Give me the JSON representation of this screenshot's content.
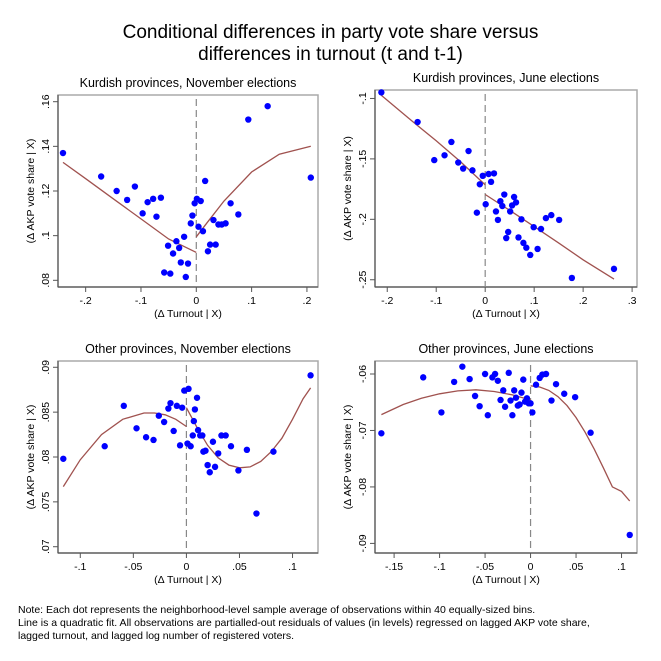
{
  "figure": {
    "title_line1": "Conditional differences in party vote share versus",
    "title_line2": "differences in turnout (t and t-1)",
    "note_lines": [
      "Note: Each dot represents the neighborhood-level sample average of observations within 40 equally-sized bins.",
      "Line is a quadratic fit. All observations are partialled-out residuals of values (in levels) regressed on lagged AKP vote share,",
      "lagged turnout, and lagged log number of registered voters."
    ],
    "colors": {
      "points": "#0000ff",
      "fit": "#a0524f",
      "frame": "#555555",
      "cutoff": "#888888"
    }
  },
  "chart_data": [
    {
      "type": "scatter",
      "title": "Kurdish provinces, November elections",
      "xlabel": "(Δ Turnout | X)",
      "ylabel": "(Δ AKP vote share | X)",
      "xlim": [
        -0.25,
        0.22
      ],
      "ylim": [
        0.077,
        0.163
      ],
      "xticks": [
        -0.2,
        -0.1,
        0,
        0.1,
        0.2
      ],
      "xtick_labels": [
        "-.2",
        "-.1",
        "0",
        ".1",
        ".2"
      ],
      "yticks": [
        0.08,
        0.1,
        0.12,
        0.14,
        0.16
      ],
      "ytick_labels": [
        ".08",
        ".1",
        ".12",
        ".14",
        ".16"
      ],
      "cutoff_x": 0,
      "points": [
        [
          -0.241,
          0.137
        ],
        [
          -0.172,
          0.1265
        ],
        [
          -0.144,
          0.12
        ],
        [
          -0.125,
          0.116
        ],
        [
          -0.111,
          0.122
        ],
        [
          -0.097,
          0.11
        ],
        [
          -0.088,
          0.115
        ],
        [
          -0.078,
          0.1165
        ],
        [
          -0.072,
          0.1085
        ],
        [
          -0.064,
          0.117
        ],
        [
          -0.058,
          0.0835
        ],
        [
          -0.051,
          0.0955
        ],
        [
          -0.047,
          0.083
        ],
        [
          -0.042,
          0.092
        ],
        [
          -0.036,
          0.0975
        ],
        [
          -0.031,
          0.0945
        ],
        [
          -0.028,
          0.088
        ],
        [
          -0.022,
          0.0995
        ],
        [
          -0.019,
          0.0815
        ],
        [
          -0.015,
          0.0875
        ],
        [
          -0.01,
          0.1055
        ],
        [
          -0.007,
          0.109
        ],
        [
          -0.003,
          0.1145
        ],
        [
          0.001,
          0.1165
        ],
        [
          0.004,
          0.104
        ],
        [
          0.008,
          0.1155
        ],
        [
          0.012,
          0.102
        ],
        [
          0.016,
          0.1245
        ],
        [
          0.021,
          0.093
        ],
        [
          0.025,
          0.096
        ],
        [
          0.031,
          0.107
        ],
        [
          0.035,
          0.096
        ],
        [
          0.04,
          0.105
        ],
        [
          0.046,
          0.105
        ],
        [
          0.053,
          0.1055
        ],
        [
          0.062,
          0.1145
        ],
        [
          0.076,
          0.1095
        ],
        [
          0.094,
          0.152
        ],
        [
          0.129,
          0.158
        ],
        [
          0.207,
          0.126
        ]
      ],
      "fit_left": [
        [
          -0.241,
          0.1328
        ],
        [
          -0.2,
          0.1255
        ],
        [
          -0.15,
          0.1165
        ],
        [
          -0.1,
          0.1075
        ],
        [
          -0.05,
          0.0985
        ],
        [
          0,
          0.0925
        ]
      ],
      "fit_right": [
        [
          0,
          0.0995
        ],
        [
          0.02,
          0.106
        ],
        [
          0.05,
          0.1155
        ],
        [
          0.1,
          0.1285
        ],
        [
          0.15,
          0.1365
        ],
        [
          0.207,
          0.14
        ]
      ]
    },
    {
      "type": "scatter",
      "title": "Kurdish provinces, June elections",
      "xlabel": "(Δ Turnout | X)",
      "ylabel": "(Δ AKP vote share | X)",
      "xlim": [
        -0.225,
        0.31
      ],
      "ylim": [
        -0.256,
        -0.093
      ],
      "xticks": [
        -0.2,
        -0.1,
        0,
        0.1,
        0.2,
        0.3
      ],
      "xtick_labels": [
        "-.2",
        "-.1",
        "0",
        ".1",
        ".2",
        ".3"
      ],
      "yticks": [
        -0.1,
        -0.15,
        -0.2,
        -0.25
      ],
      "ytick_labels": [
        "-.1",
        "-.15",
        "-.2",
        "-.25"
      ],
      "cutoff_x": 0,
      "points": [
        [
          -0.212,
          -0.095
        ],
        [
          -0.138,
          -0.1195
        ],
        [
          -0.104,
          -0.151
        ],
        [
          -0.083,
          -0.147
        ],
        [
          -0.069,
          -0.136
        ],
        [
          -0.055,
          -0.153
        ],
        [
          -0.045,
          -0.158
        ],
        [
          -0.034,
          -0.1435
        ],
        [
          -0.026,
          -0.1595
        ],
        [
          -0.017,
          -0.1945
        ],
        [
          -0.011,
          -0.171
        ],
        [
          -0.005,
          -0.164
        ],
        [
          0.001,
          -0.1875
        ],
        [
          0.007,
          -0.1625
        ],
        [
          0.012,
          -0.169
        ],
        [
          0.018,
          -0.162
        ],
        [
          0.022,
          -0.1935
        ],
        [
          0.026,
          -0.2005
        ],
        [
          0.031,
          -0.185
        ],
        [
          0.035,
          -0.189
        ],
        [
          0.039,
          -0.1795
        ],
        [
          0.043,
          -0.2155
        ],
        [
          0.047,
          -0.2105
        ],
        [
          0.051,
          -0.1935
        ],
        [
          0.055,
          -0.1885
        ],
        [
          0.059,
          -0.1815
        ],
        [
          0.063,
          -0.186
        ],
        [
          0.068,
          -0.215
        ],
        [
          0.074,
          -0.2
        ],
        [
          0.078,
          -0.2195
        ],
        [
          0.084,
          -0.2235
        ],
        [
          0.092,
          -0.2295
        ],
        [
          0.099,
          -0.2065
        ],
        [
          0.107,
          -0.2245
        ],
        [
          0.114,
          -0.208
        ],
        [
          0.124,
          -0.199
        ],
        [
          0.135,
          -0.1965
        ],
        [
          0.151,
          -0.2005
        ],
        [
          0.177,
          -0.2485
        ],
        [
          0.263,
          -0.241
        ]
      ],
      "fit_left": [
        [
          -0.212,
          -0.0975
        ],
        [
          -0.15,
          -0.1185
        ],
        [
          -0.1,
          -0.135
        ],
        [
          -0.05,
          -0.1525
        ],
        [
          0,
          -0.1715
        ]
      ],
      "fit_right": [
        [
          0,
          -0.1795
        ],
        [
          0.05,
          -0.1925
        ],
        [
          0.1,
          -0.206
        ],
        [
          0.15,
          -0.2195
        ],
        [
          0.2,
          -0.2335
        ],
        [
          0.263,
          -0.2495
        ]
      ]
    },
    {
      "type": "scatter",
      "title": "Other provinces, November elections",
      "xlabel": "(Δ Turnout | X)",
      "ylabel": "(Δ AKP vote share | X)",
      "xlim": [
        -0.121,
        0.124
      ],
      "ylim": [
        0.0693,
        0.0907
      ],
      "xticks": [
        -0.1,
        -0.05,
        0,
        0.05,
        0.1
      ],
      "xtick_labels": [
        "-.1",
        "-.05",
        "0",
        ".05",
        ".1"
      ],
      "yticks": [
        0.07,
        0.075,
        0.08,
        0.085,
        0.09
      ],
      "ytick_labels": [
        ".07",
        ".075",
        ".08",
        ".085",
        ".09"
      ],
      "cutoff_x": 0,
      "points": [
        [
          -0.116,
          0.0798
        ],
        [
          -0.077,
          0.0812
        ],
        [
          -0.059,
          0.0857
        ],
        [
          -0.047,
          0.0832
        ],
        [
          -0.038,
          0.0822
        ],
        [
          -0.031,
          0.0819
        ],
        [
          -0.026,
          0.0846
        ],
        [
          -0.021,
          0.0839
        ],
        [
          -0.017,
          0.0854
        ],
        [
          -0.015,
          0.086
        ],
        [
          -0.012,
          0.0829
        ],
        [
          -0.009,
          0.0857
        ],
        [
          -0.006,
          0.0813
        ],
        [
          -0.004,
          0.0855
        ],
        [
          -0.002,
          0.0874
        ],
        [
          0.001,
          0.0815
        ],
        [
          0.002,
          0.0876
        ],
        [
          0.004,
          0.0812
        ],
        [
          0.006,
          0.0824
        ],
        [
          0.007,
          0.084
        ],
        [
          0.008,
          0.0853
        ],
        [
          0.01,
          0.0866
        ],
        [
          0.011,
          0.083
        ],
        [
          0.013,
          0.0824
        ],
        [
          0.015,
          0.0824
        ],
        [
          0.016,
          0.0806
        ],
        [
          0.018,
          0.0807
        ],
        [
          0.02,
          0.0791
        ],
        [
          0.022,
          0.0783
        ],
        [
          0.025,
          0.0817
        ],
        [
          0.027,
          0.0789
        ],
        [
          0.03,
          0.0804
        ],
        [
          0.033,
          0.0824
        ],
        [
          0.037,
          0.0824
        ],
        [
          0.042,
          0.0812
        ],
        [
          0.049,
          0.0785
        ],
        [
          0.057,
          0.0808
        ],
        [
          0.066,
          0.0737
        ],
        [
          0.082,
          0.0806
        ],
        [
          0.117,
          0.0891
        ]
      ],
      "fit_left": [
        [
          -0.116,
          0.0767
        ],
        [
          -0.1,
          0.0797
        ],
        [
          -0.08,
          0.0825
        ],
        [
          -0.06,
          0.0842
        ],
        [
          -0.04,
          0.0849
        ],
        [
          -0.03,
          0.0849
        ],
        [
          -0.02,
          0.0847
        ],
        [
          -0.01,
          0.0842
        ],
        [
          0,
          0.0834
        ]
      ],
      "fit_right": [
        [
          0,
          0.0855
        ],
        [
          0.01,
          0.0833
        ],
        [
          0.02,
          0.0813
        ],
        [
          0.03,
          0.0799
        ],
        [
          0.04,
          0.0791
        ],
        [
          0.05,
          0.0788
        ],
        [
          0.06,
          0.0789
        ],
        [
          0.07,
          0.0795
        ],
        [
          0.08,
          0.0806
        ],
        [
          0.09,
          0.0821
        ],
        [
          0.1,
          0.0842
        ],
        [
          0.11,
          0.0865
        ],
        [
          0.117,
          0.0877
        ]
      ]
    },
    {
      "type": "scatter",
      "title": "Other provinces, June elections",
      "xlabel": "(Δ Turnout | X)",
      "ylabel": "(Δ AKP vote share | X)",
      "xlim": [
        -0.171,
        0.117
      ],
      "ylim": [
        -0.0917,
        -0.0577
      ],
      "xticks": [
        -0.15,
        -0.1,
        -0.05,
        0,
        0.05,
        0.1
      ],
      "xtick_labels": [
        "-.15",
        "-.1",
        "-.05",
        "0",
        ".05",
        ".1"
      ],
      "yticks": [
        -0.06,
        -0.07,
        -0.08,
        -0.09
      ],
      "ytick_labels": [
        "-.06",
        "-.07",
        "-.08",
        "-.09"
      ],
      "cutoff_x": 0,
      "points": [
        [
          -0.164,
          -0.0705
        ],
        [
          -0.118,
          -0.0606
        ],
        [
          -0.098,
          -0.0668
        ],
        [
          -0.084,
          -0.0614
        ],
        [
          -0.075,
          -0.0587
        ],
        [
          -0.067,
          -0.0609
        ],
        [
          -0.061,
          -0.0639
        ],
        [
          -0.056,
          -0.0657
        ],
        [
          -0.05,
          -0.06
        ],
        [
          -0.047,
          -0.0673
        ],
        [
          -0.042,
          -0.0606
        ],
        [
          -0.039,
          -0.06
        ],
        [
          -0.036,
          -0.0612
        ],
        [
          -0.033,
          -0.0646
        ],
        [
          -0.03,
          -0.0629
        ],
        [
          -0.028,
          -0.0658
        ],
        [
          -0.024,
          -0.0598
        ],
        [
          -0.022,
          -0.0647
        ],
        [
          -0.02,
          -0.0673
        ],
        [
          -0.018,
          -0.0629
        ],
        [
          -0.016,
          -0.0642
        ],
        [
          -0.014,
          -0.0656
        ],
        [
          -0.012,
          -0.0654
        ],
        [
          -0.01,
          -0.0633
        ],
        [
          -0.008,
          -0.061
        ],
        [
          -0.006,
          -0.0649
        ],
        [
          -0.004,
          -0.0643
        ],
        [
          -0.002,
          -0.0652
        ],
        [
          0.0,
          -0.0652
        ],
        [
          0.002,
          -0.0668
        ],
        [
          0.006,
          -0.0619
        ],
        [
          0.01,
          -0.0607
        ],
        [
          0.013,
          -0.0601
        ],
        [
          0.017,
          -0.06
        ],
        [
          0.023,
          -0.0647
        ],
        [
          0.028,
          -0.0618
        ],
        [
          0.037,
          -0.0635
        ],
        [
          0.049,
          -0.0641
        ],
        [
          0.066,
          -0.0704
        ],
        [
          0.109,
          -0.0885
        ]
      ],
      "fit_left": [
        [
          -0.164,
          -0.0672
        ],
        [
          -0.14,
          -0.0654
        ],
        [
          -0.12,
          -0.0643
        ],
        [
          -0.1,
          -0.0635
        ],
        [
          -0.08,
          -0.063
        ],
        [
          -0.06,
          -0.0628
        ],
        [
          -0.04,
          -0.0631
        ],
        [
          -0.02,
          -0.0637
        ],
        [
          0,
          -0.0646
        ]
      ],
      "fit_right": [
        [
          0,
          -0.0621
        ],
        [
          0.01,
          -0.0623
        ],
        [
          0.02,
          -0.0629
        ],
        [
          0.03,
          -0.064
        ],
        [
          0.04,
          -0.0656
        ],
        [
          0.05,
          -0.0677
        ],
        [
          0.06,
          -0.0703
        ],
        [
          0.07,
          -0.0733
        ],
        [
          0.08,
          -0.0766
        ],
        [
          0.09,
          -0.08
        ],
        [
          0.1,
          -0.0808
        ],
        [
          0.109,
          -0.0825
        ]
      ]
    }
  ]
}
